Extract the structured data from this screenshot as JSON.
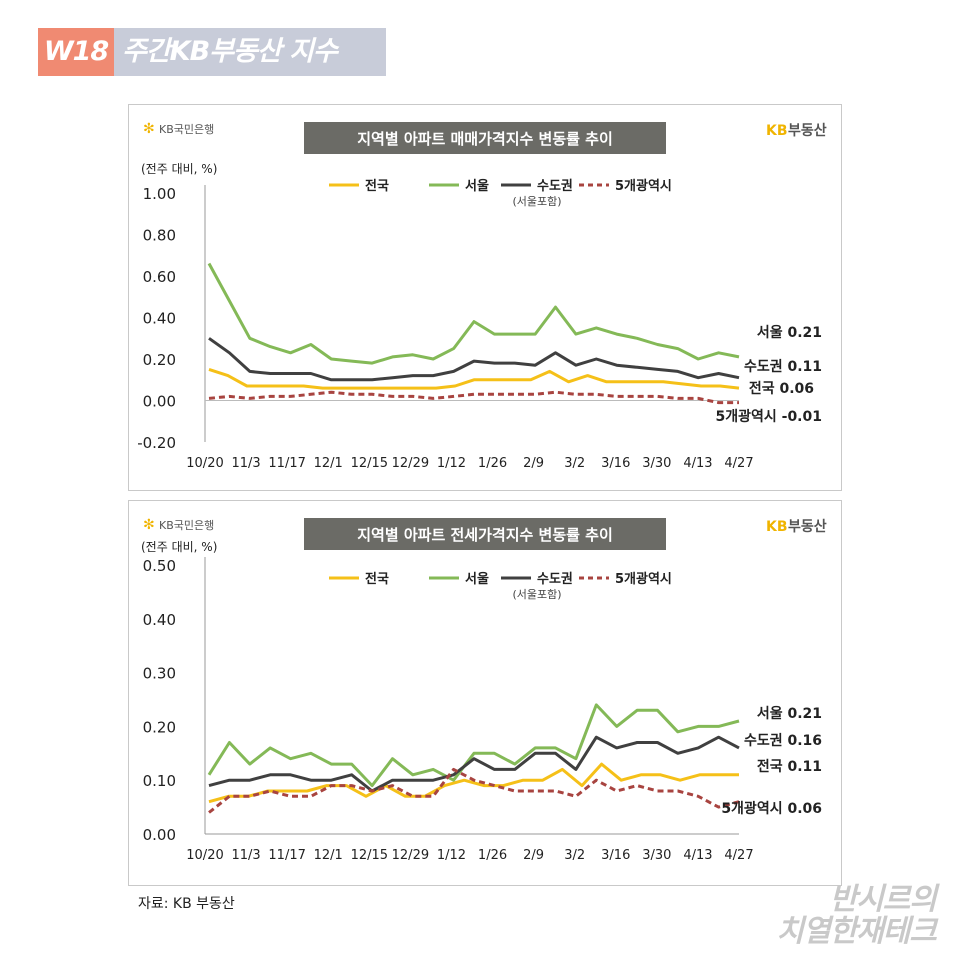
{
  "header": {
    "week": "W18",
    "title": "주간KB부동산 지수"
  },
  "source": "자료: KB 부동산",
  "watermark": [
    "반시르의",
    "치열한재테크"
  ],
  "logos": {
    "bank": "KB국민은행",
    "brand_kb": "KB",
    "brand_rest": "부동산"
  },
  "colors": {
    "national": "#f5c018",
    "seoul": "#84b957",
    "capital": "#404040",
    "metro5": "#a84440",
    "title_bg": "#6b6b66"
  },
  "chart_data": [
    {
      "type": "line",
      "title": "지역별 아파트 매매가격지수 변동률 추이",
      "ylabel": "(전주 대비, %)",
      "ylim": [
        -0.2,
        1.0
      ],
      "yticks": [
        "1.00",
        "0.80",
        "0.60",
        "0.40",
        "0.20",
        "0.00",
        "-0.20"
      ],
      "xticks": [
        "10/20",
        "11/3",
        "11/17",
        "12/1",
        "12/15",
        "12/29",
        "1/12",
        "1/26",
        "2/9",
        "3/2",
        "3/16",
        "3/30",
        "4/13",
        "4/27"
      ],
      "legend": {
        "national": "전국",
        "seoul": "서울",
        "capital": "수도권",
        "capital_note": "(서울포함)",
        "metro5": "5개광역시"
      },
      "end_labels": {
        "seoul": "서울 0.21",
        "capital": "수도권 0.11",
        "national": "전국 0.06",
        "metro5": "5개광역시 -0.01"
      },
      "series": [
        {
          "name": "전국",
          "key": "national",
          "values": [
            0.15,
            0.12,
            0.07,
            0.07,
            0.07,
            0.07,
            0.06,
            0.06,
            0.06,
            0.06,
            0.06,
            0.06,
            0.06,
            0.07,
            0.1,
            0.1,
            0.1,
            0.1,
            0.14,
            0.09,
            0.12,
            0.09,
            0.09,
            0.09,
            0.09,
            0.08,
            0.07,
            0.07,
            0.06
          ]
        },
        {
          "name": "서울",
          "key": "seoul",
          "values": [
            0.66,
            0.48,
            0.3,
            0.26,
            0.23,
            0.27,
            0.2,
            0.19,
            0.18,
            0.21,
            0.22,
            0.2,
            0.25,
            0.38,
            0.32,
            0.32,
            0.32,
            0.45,
            0.32,
            0.35,
            0.32,
            0.3,
            0.27,
            0.25,
            0.2,
            0.23,
            0.21
          ]
        },
        {
          "name": "수도권",
          "key": "capital",
          "values": [
            0.3,
            0.23,
            0.14,
            0.13,
            0.13,
            0.13,
            0.1,
            0.1,
            0.1,
            0.11,
            0.12,
            0.12,
            0.14,
            0.19,
            0.18,
            0.18,
            0.17,
            0.23,
            0.17,
            0.2,
            0.17,
            0.16,
            0.15,
            0.14,
            0.11,
            0.13,
            0.11
          ]
        },
        {
          "name": "5개광역시",
          "key": "metro5",
          "values": [
            0.01,
            0.02,
            0.01,
            0.02,
            0.02,
            0.03,
            0.04,
            0.03,
            0.03,
            0.02,
            0.02,
            0.01,
            0.02,
            0.03,
            0.03,
            0.03,
            0.03,
            0.04,
            0.03,
            0.03,
            0.02,
            0.02,
            0.02,
            0.01,
            0.01,
            -0.01,
            -0.01
          ]
        }
      ]
    },
    {
      "type": "line",
      "title": "지역별 아파트 전세가격지수 변동률 추이",
      "ylabel": "(전주 대비, %)",
      "ylim": [
        0,
        0.5
      ],
      "yticks": [
        "0.50",
        "0.40",
        "0.30",
        "0.20",
        "0.10",
        "0.00"
      ],
      "xticks": [
        "10/20",
        "11/3",
        "11/17",
        "12/1",
        "12/15",
        "12/29",
        "1/12",
        "1/26",
        "2/9",
        "3/2",
        "3/16",
        "3/30",
        "4/13",
        "4/27"
      ],
      "legend": {
        "national": "전국",
        "seoul": "서울",
        "capital": "수도권",
        "capital_note": "(서울포함)",
        "metro5": "5개광역시"
      },
      "end_labels": {
        "seoul": "서울 0.21",
        "capital": "수도권 0.16",
        "national": "전국 0.11",
        "metro5": "5개광역시 0.06"
      },
      "series": [
        {
          "name": "전국",
          "key": "national",
          "values": [
            0.06,
            0.07,
            0.07,
            0.08,
            0.08,
            0.08,
            0.09,
            0.09,
            0.07,
            0.09,
            0.07,
            0.07,
            0.09,
            0.1,
            0.09,
            0.09,
            0.1,
            0.1,
            0.12,
            0.09,
            0.13,
            0.1,
            0.11,
            0.11,
            0.1,
            0.11,
            0.11,
            0.11
          ]
        },
        {
          "name": "서울",
          "key": "seoul",
          "values": [
            0.11,
            0.17,
            0.13,
            0.16,
            0.14,
            0.15,
            0.13,
            0.13,
            0.09,
            0.14,
            0.11,
            0.12,
            0.1,
            0.15,
            0.15,
            0.13,
            0.16,
            0.16,
            0.14,
            0.24,
            0.2,
            0.23,
            0.23,
            0.19,
            0.2,
            0.2,
            0.21
          ]
        },
        {
          "name": "수도권",
          "key": "capital",
          "values": [
            0.09,
            0.1,
            0.1,
            0.11,
            0.11,
            0.1,
            0.1,
            0.11,
            0.08,
            0.1,
            0.1,
            0.1,
            0.11,
            0.14,
            0.12,
            0.12,
            0.15,
            0.15,
            0.12,
            0.18,
            0.16,
            0.17,
            0.17,
            0.15,
            0.16,
            0.18,
            0.16
          ]
        },
        {
          "name": "5개광역시",
          "key": "metro5",
          "values": [
            0.04,
            0.07,
            0.07,
            0.08,
            0.07,
            0.07,
            0.09,
            0.09,
            0.08,
            0.09,
            0.07,
            0.07,
            0.12,
            0.1,
            0.09,
            0.08,
            0.08,
            0.08,
            0.07,
            0.1,
            0.08,
            0.09,
            0.08,
            0.08,
            0.07,
            0.05,
            0.06
          ]
        }
      ]
    }
  ]
}
